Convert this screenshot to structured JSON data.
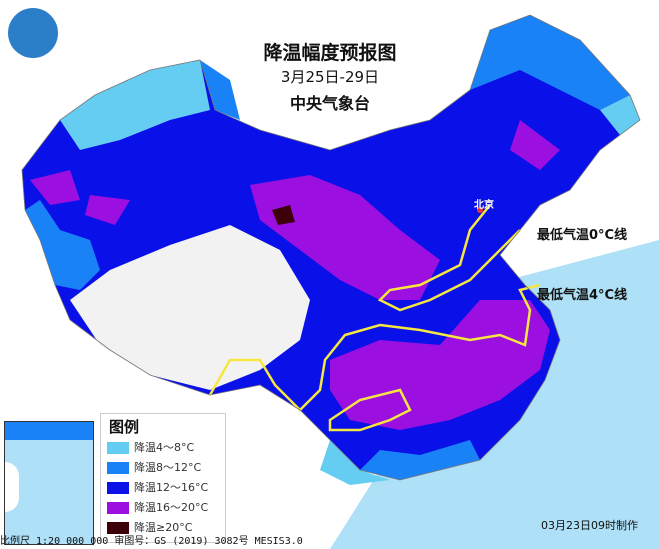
{
  "title": "降温幅度预报图",
  "date_range": "3月25日-29日",
  "organization": "中央气象台",
  "isolines": [
    {
      "label": "最低气温0°C线",
      "color": "#f5e640"
    },
    {
      "label": "最低气温4°C线",
      "color": "#f5e640"
    }
  ],
  "legend": {
    "title": "图例",
    "items": [
      {
        "label": "降温4～8°C",
        "color": "#66cdf2"
      },
      {
        "label": "降温8～12°C",
        "color": "#1a82f7"
      },
      {
        "label": "降温12～16°C",
        "color": "#0a10e8"
      },
      {
        "label": "降温16～20°C",
        "color": "#9b10e0"
      },
      {
        "label": "降温≥20°C",
        "color": "#3d0008"
      }
    ]
  },
  "cities": {
    "beijing": "北京"
  },
  "footer": {
    "scale": "比例尺 1:20 000 000  审图号：GS (2019) 3082号 MESIS3.0",
    "issued": "03月23日09时制作"
  },
  "colors": {
    "sea": "#aee0f7",
    "no_data": "#f2f2f2"
  }
}
